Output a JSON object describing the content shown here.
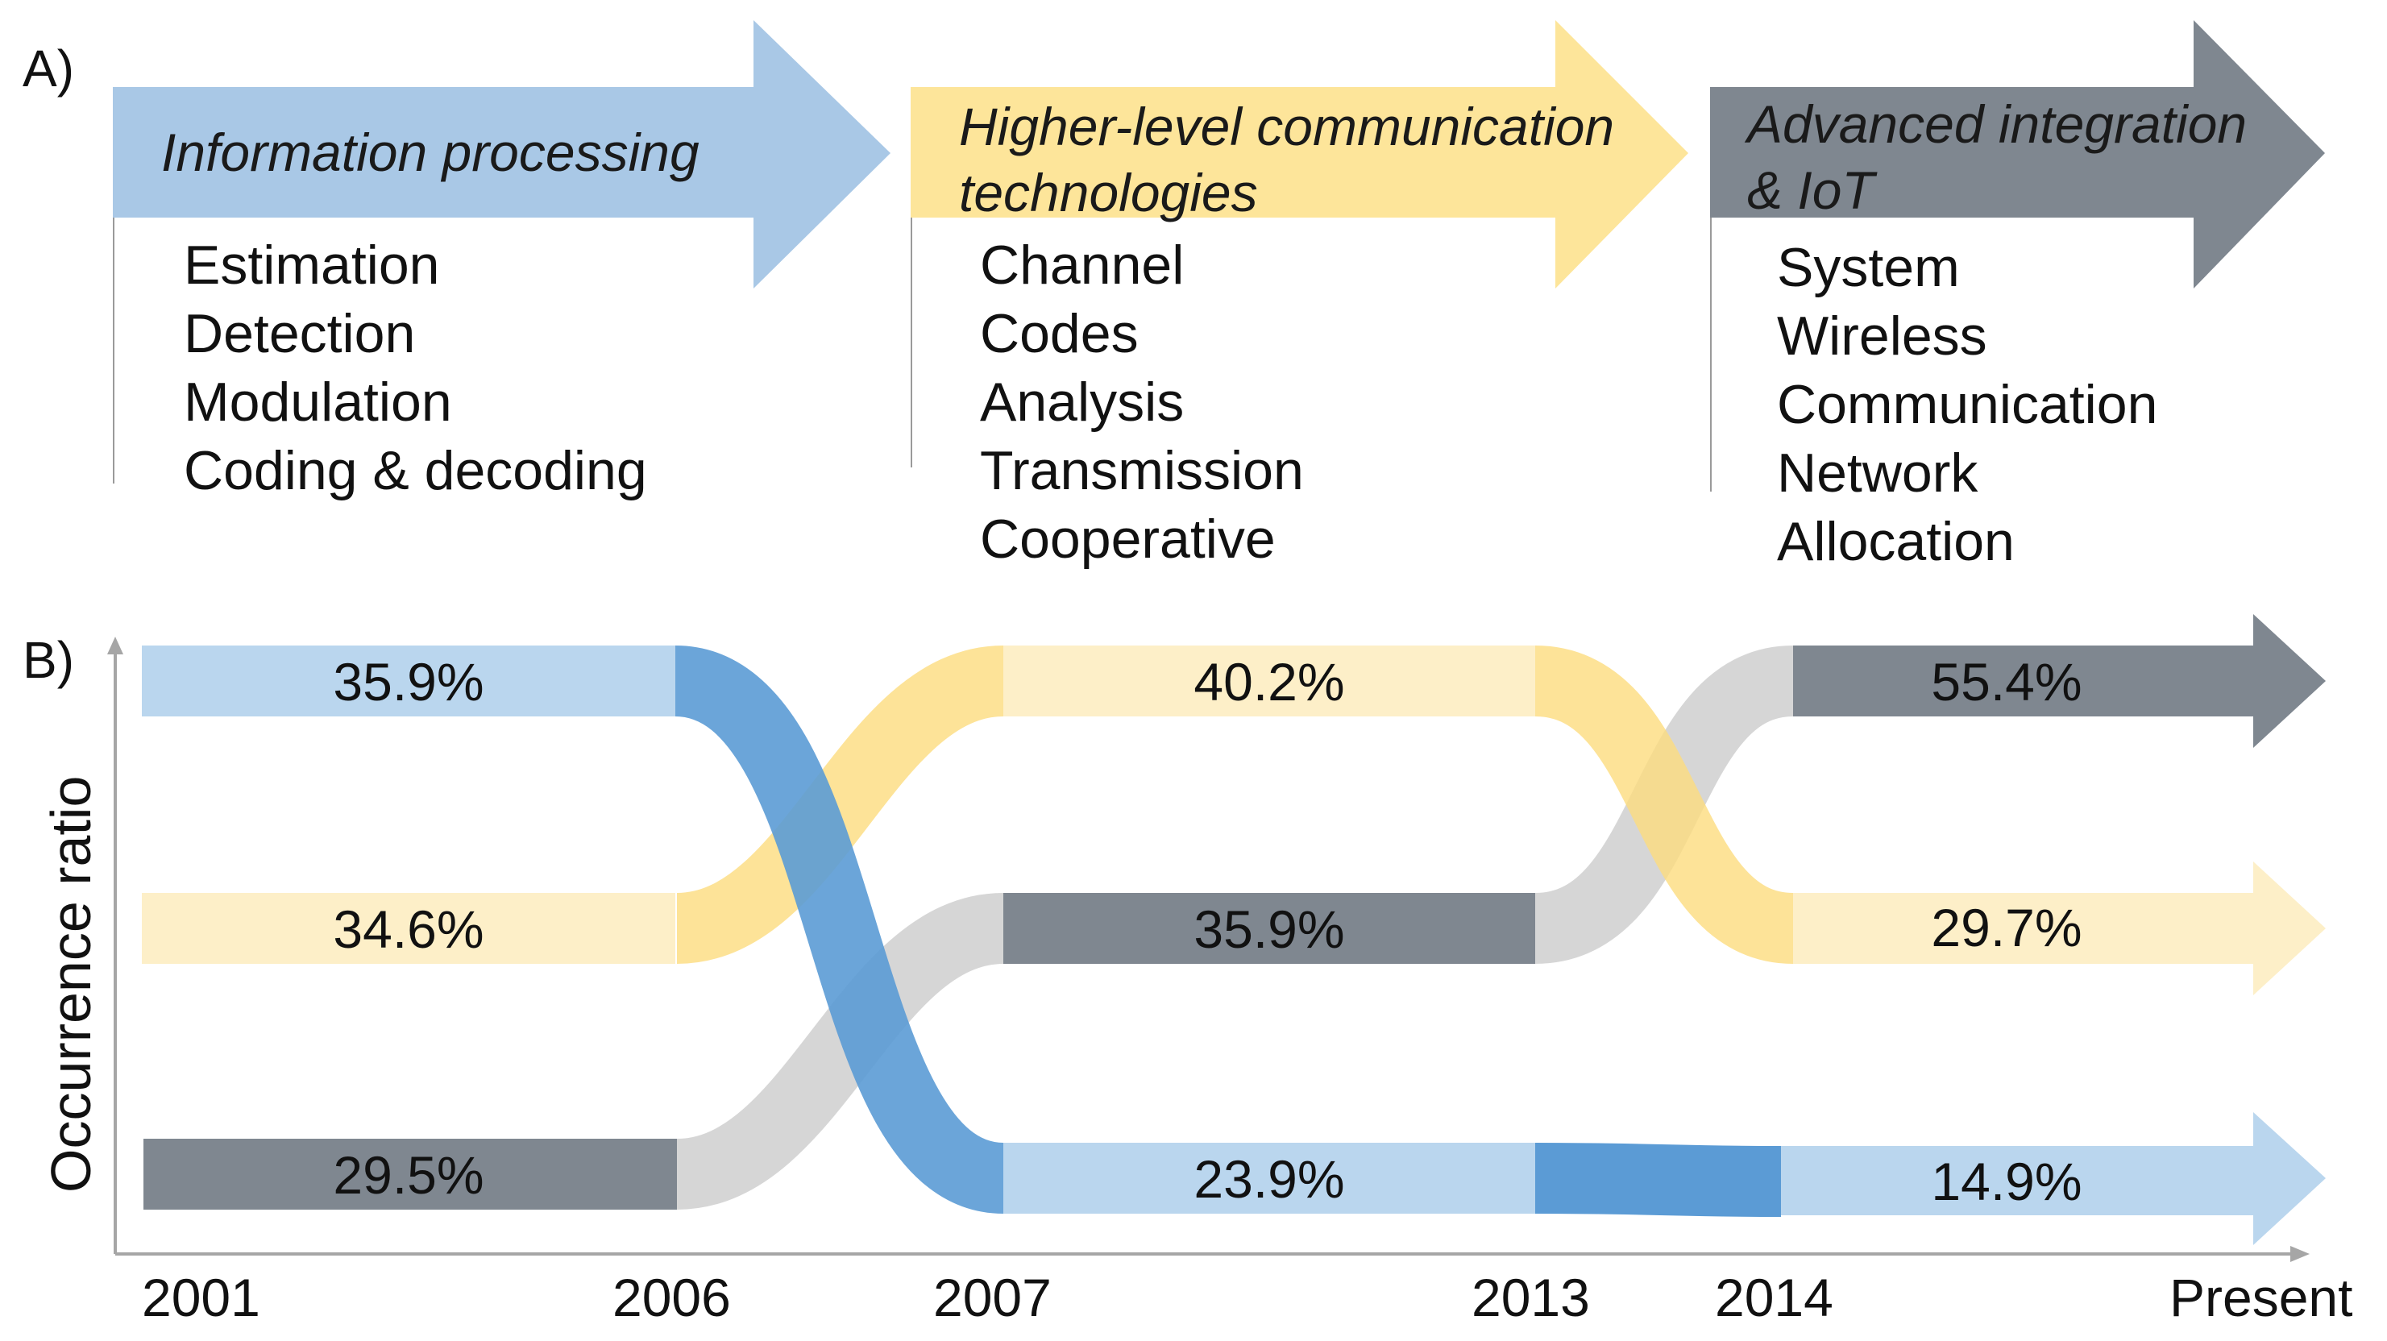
{
  "panel_a": {
    "label": "A)",
    "arrows": [
      {
        "title_lines": [
          "Information processing"
        ],
        "color": "#a9c8e6",
        "items": [
          "Estimation",
          "Detection",
          "Modulation",
          "Coding & decoding"
        ]
      },
      {
        "title_lines": [
          "Higher-level communication",
          "technologies"
        ],
        "color": "#fde59a",
        "items": [
          "Channel",
          "Codes",
          "Analysis",
          "Transmission",
          "Cooperative"
        ]
      },
      {
        "title_lines": [
          "Advanced integration",
          "& IoT"
        ],
        "color": "#7f8790",
        "items": [
          "System",
          "Wireless",
          "Communication",
          "Network",
          "Allocation"
        ]
      }
    ]
  },
  "panel_b": {
    "label": "B)",
    "y_axis_label": "Occurrence ratio",
    "x_ticks": [
      "2001",
      "2006",
      "2007",
      "2013",
      "2014",
      "Present"
    ],
    "colors": {
      "info_light": "#bad6ee",
      "info_dark": "#5b9bd5",
      "comm_light": "#fdefc8",
      "comm_dark": "#fddc7e",
      "iot_dark": "#7f8790",
      "iot_light": "#cfcfcf"
    },
    "chart_data": {
      "type": "flow",
      "title": "",
      "xlabel": "",
      "ylabel": "Occurrence ratio",
      "categories": [
        "2001-2006",
        "2007-2013",
        "2014-Present"
      ],
      "series": [
        {
          "name": "Information processing",
          "values": [
            35.9,
            23.9,
            14.9
          ],
          "ranks": [
            1,
            3,
            3
          ]
        },
        {
          "name": "Higher-level communication technologies",
          "values": [
            34.6,
            40.2,
            29.7
          ],
          "ranks": [
            2,
            1,
            2
          ]
        },
        {
          "name": "Advanced integration & IoT",
          "values": [
            29.5,
            35.9,
            55.4
          ],
          "ranks": [
            3,
            2,
            1
          ]
        }
      ],
      "labels": {
        "info": [
          "35.9%",
          "23.9%",
          "14.9%"
        ],
        "comm": [
          "34.6%",
          "40.2%",
          "29.7%"
        ],
        "iot": [
          "29.5%",
          "35.9%",
          "55.4%"
        ]
      }
    }
  }
}
